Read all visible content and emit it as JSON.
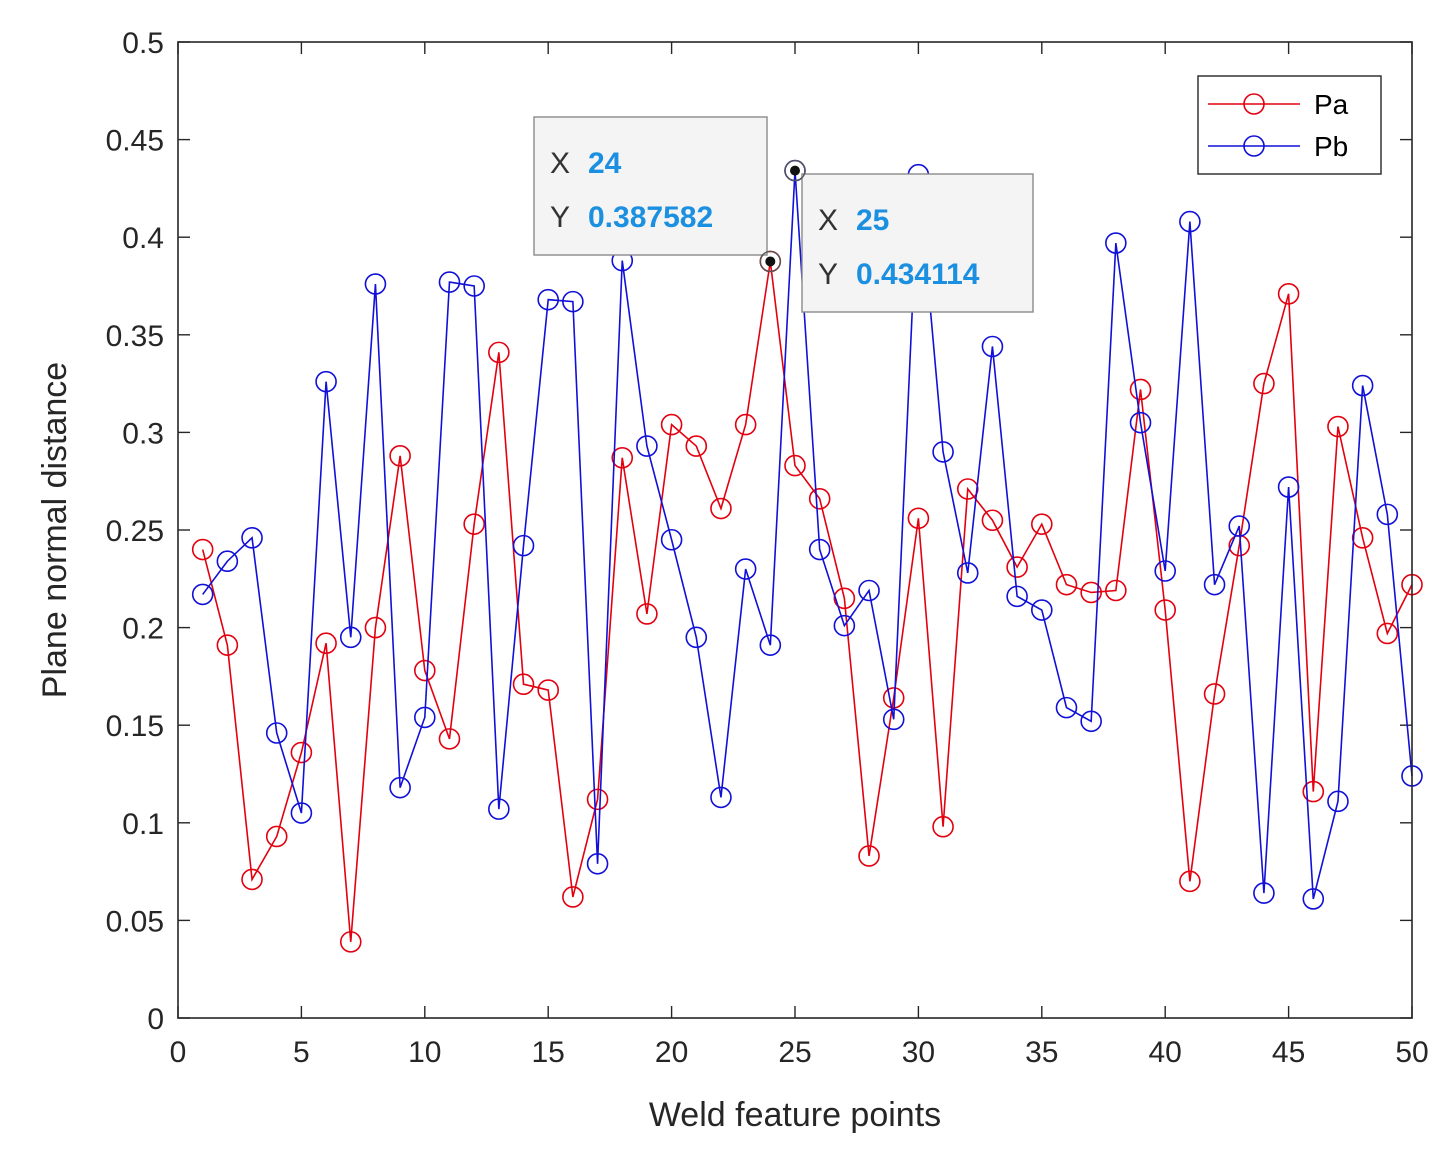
{
  "chart_data": {
    "type": "line",
    "xlabel": "Weld feature points",
    "ylabel": "Plane normal distance",
    "xlim": [
      0,
      50
    ],
    "ylim": [
      0,
      0.5
    ],
    "xticks": [
      0,
      5,
      10,
      15,
      20,
      25,
      30,
      35,
      40,
      45,
      50
    ],
    "yticks": [
      0,
      0.05,
      0.1,
      0.15,
      0.2,
      0.25,
      0.3,
      0.35,
      0.4,
      0.45,
      0.5
    ],
    "ytick_labels": [
      "0",
      "0.05",
      "0.1",
      "0.15",
      "0.2",
      "0.25",
      "0.3",
      "0.35",
      "0.4",
      "0.45",
      "0.5"
    ],
    "legend_location": "top-right",
    "x": [
      1,
      2,
      3,
      4,
      5,
      6,
      7,
      8,
      9,
      10,
      11,
      12,
      13,
      14,
      15,
      16,
      17,
      18,
      19,
      20,
      21,
      22,
      23,
      24,
      25,
      26,
      27,
      28,
      29,
      30,
      31,
      32,
      33,
      34,
      35,
      36,
      37,
      38,
      39,
      40,
      41,
      42,
      43,
      44,
      45,
      46,
      47,
      48,
      49,
      50
    ],
    "series": [
      {
        "name": "Pa",
        "color": "#e3000f",
        "values": [
          0.24,
          0.191,
          0.071,
          0.093,
          0.136,
          0.192,
          0.039,
          0.2,
          0.288,
          0.178,
          0.143,
          0.253,
          0.341,
          0.171,
          0.168,
          0.062,
          0.112,
          0.287,
          0.207,
          0.304,
          0.293,
          0.261,
          0.304,
          0.387582,
          0.283,
          0.266,
          0.215,
          0.083,
          0.164,
          0.256,
          0.098,
          0.271,
          0.255,
          0.231,
          0.253,
          0.222,
          0.218,
          0.219,
          0.322,
          0.209,
          0.07,
          0.166,
          0.242,
          0.325,
          0.371,
          0.116,
          0.303,
          0.246,
          0.197,
          0.222
        ]
      },
      {
        "name": "Pb",
        "color": "#1010d8",
        "values": [
          0.217,
          0.234,
          0.246,
          0.146,
          0.105,
          0.326,
          0.195,
          0.376,
          0.118,
          0.154,
          0.377,
          0.375,
          0.107,
          0.242,
          0.368,
          0.367,
          0.079,
          0.388,
          0.293,
          0.245,
          0.195,
          0.113,
          0.23,
          0.191,
          0.434114,
          0.24,
          0.201,
          0.219,
          0.153,
          0.432,
          0.29,
          0.228,
          0.344,
          0.216,
          0.209,
          0.159,
          0.152,
          0.397,
          0.305,
          0.229,
          0.408,
          0.222,
          0.252,
          0.064,
          0.272,
          0.061,
          0.111,
          0.324,
          0.258,
          0.124
        ]
      }
    ],
    "datatips": [
      {
        "series": "Pa",
        "x_label": "X",
        "x_value": "24",
        "y_label": "Y",
        "y_value": "0.387582"
      },
      {
        "series": "Pb",
        "x_label": "X",
        "x_value": "25",
        "y_label": "Y",
        "y_value": "0.434114"
      }
    ]
  }
}
